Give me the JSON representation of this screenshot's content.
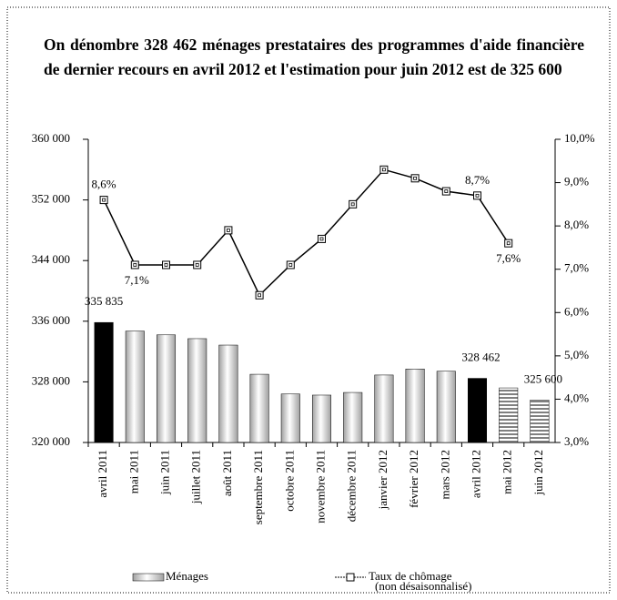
{
  "chart_data": {
    "type": "bar-line",
    "title": "On dénombre 328 462 ménages prestataires des programmes d'aide financière de dernier recours en avril 2012 et l'estimation pour juin 2012 est de 325 600",
    "categories": [
      "avril 2011",
      "mai 2011",
      "juin 2011",
      "juillet 2011",
      "août 2011",
      "septembre 2011",
      "octobre 2011",
      "novembre 2011",
      "décembre 2011",
      "janvier 2012",
      "février 2012",
      "mars 2012",
      "avril 2012",
      "mai 2012",
      "juin 2012"
    ],
    "series": [
      {
        "name": "Ménages",
        "type": "bar",
        "colors": [
          "#000000",
          "#a0a0a0",
          "#a0a0a0",
          "#a0a0a0",
          "#a0a0a0",
          "#a0a0a0",
          "#a0a0a0",
          "#a0a0a0",
          "#a0a0a0",
          "#a0a0a0",
          "#a0a0a0",
          "#a0a0a0",
          "#000000",
          "#808080",
          "#808080"
        ],
        "values": [
          335835,
          334700,
          334200,
          333700,
          332850,
          329000,
          326400,
          326250,
          326600,
          328900,
          329700,
          329400,
          328462,
          327200,
          325600
        ],
        "value_labels": [
          "335 835",
          null,
          null,
          null,
          null,
          null,
          null,
          null,
          null,
          null,
          null,
          null,
          "328 462",
          null,
          "325 600"
        ]
      },
      {
        "name": "Taux de chômage",
        "legend_note": "(non désaisonnalisé)",
        "type": "line",
        "axis": "y2",
        "color": "#000000",
        "values": [
          8.6,
          7.1,
          7.1,
          7.1,
          7.9,
          6.4,
          7.1,
          7.7,
          8.5,
          9.3,
          9.1,
          8.8,
          8.7,
          7.6,
          null
        ],
        "value_labels": [
          "8,6%",
          "7,1%",
          null,
          null,
          null,
          null,
          null,
          null,
          null,
          null,
          null,
          null,
          "8,7%",
          "7,6%",
          null
        ]
      }
    ],
    "ylim": [
      320000,
      360000
    ],
    "yticks": [
      {
        "value": 320000,
        "label": "320 000"
      },
      {
        "value": 328000,
        "label": "328 000"
      },
      {
        "value": 336000,
        "label": "336 000"
      },
      {
        "value": 344000,
        "label": "344 000"
      },
      {
        "value": 352000,
        "label": "352 000"
      },
      {
        "value": 360000,
        "label": "360 000"
      }
    ],
    "y2lim": [
      3,
      10
    ],
    "y2ticks": [
      {
        "value": 3,
        "label": "3,0%"
      },
      {
        "value": 4,
        "label": "4,0%"
      },
      {
        "value": 5,
        "label": "5,0%"
      },
      {
        "value": 6,
        "label": "6,0%"
      },
      {
        "value": 7,
        "label": "7,0%"
      },
      {
        "value": 8,
        "label": "8,0%"
      },
      {
        "value": 9,
        "label": "9,0%"
      },
      {
        "value": 10,
        "label": "10,0%"
      }
    ],
    "grid": false
  }
}
